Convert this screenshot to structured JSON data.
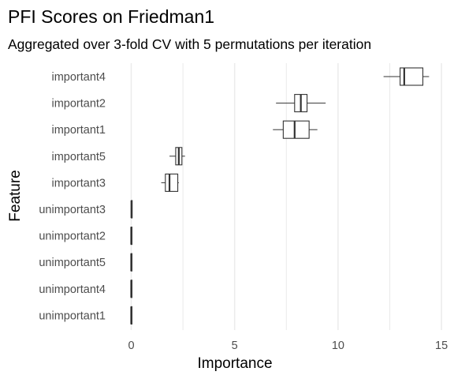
{
  "chart_data": {
    "type": "boxplot",
    "orientation": "horizontal",
    "title": "PFI Scores on Friedman1",
    "subtitle": "Aggregated over 3-fold CV with 5 permutations per iteration",
    "xlabel": "Importance",
    "ylabel": "Feature",
    "xlim": [
      -0.5,
      15.2
    ],
    "x_ticks": [
      0,
      5,
      10,
      15
    ],
    "x_tick_labels": [
      "0",
      "5",
      "10",
      "15"
    ],
    "grid": "major and minor vertical",
    "legend": "none",
    "categories": [
      "important4",
      "important2",
      "important1",
      "important5",
      "important3",
      "unimportant3",
      "unimportant2",
      "unimportant5",
      "unimportant4",
      "unimportant1"
    ],
    "boxes": [
      {
        "feature": "important4",
        "min": 12.2,
        "q1": 13.0,
        "median": 13.2,
        "q3": 14.1,
        "max": 14.4
      },
      {
        "feature": "important2",
        "min": 7.0,
        "q1": 7.9,
        "median": 8.2,
        "q3": 8.5,
        "max": 9.4
      },
      {
        "feature": "important1",
        "min": 6.85,
        "q1": 7.35,
        "median": 7.9,
        "q3": 8.6,
        "max": 9.0
      },
      {
        "feature": "important5",
        "min": 1.85,
        "q1": 2.15,
        "median": 2.3,
        "q3": 2.45,
        "max": 2.6
      },
      {
        "feature": "important3",
        "min": 1.45,
        "q1": 1.65,
        "median": 1.85,
        "q3": 2.25,
        "max": 2.3
      },
      {
        "feature": "unimportant3",
        "min": -0.02,
        "q1": 0.0,
        "median": 0.01,
        "q3": 0.03,
        "max": 0.05
      },
      {
        "feature": "unimportant2",
        "min": -0.02,
        "q1": -0.01,
        "median": 0.0,
        "q3": 0.02,
        "max": 0.04
      },
      {
        "feature": "unimportant5",
        "min": -0.03,
        "q1": -0.01,
        "median": 0.0,
        "q3": 0.01,
        "max": 0.03
      },
      {
        "feature": "unimportant4",
        "min": -0.04,
        "q1": -0.01,
        "median": 0.0,
        "q3": 0.02,
        "max": 0.04
      },
      {
        "feature": "unimportant1",
        "min": -0.02,
        "q1": -0.01,
        "median": 0.0,
        "q3": 0.01,
        "max": 0.02
      }
    ],
    "colors": {
      "background": "#ffffff",
      "grid": "#ebebeb",
      "box_stroke": "#333333",
      "box_fill": "#ffffff",
      "text": "#000000",
      "tick_text": "#4d4d4d"
    }
  }
}
